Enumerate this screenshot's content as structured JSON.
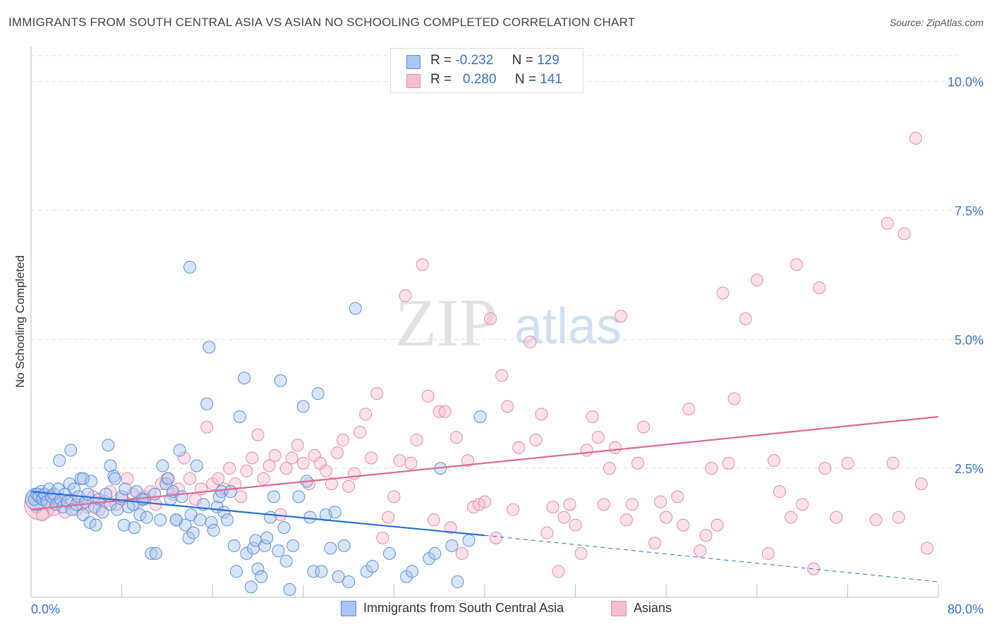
{
  "header": {
    "title": "IMMIGRANTS FROM SOUTH CENTRAL ASIA VS ASIAN NO SCHOOLING COMPLETED CORRELATION CHART",
    "source": "Source: ZipAtlas.com"
  },
  "legend_top": {
    "rows": [
      {
        "r_label": "R =",
        "r_value": "-0.232",
        "n_label": "N =",
        "n_value": "129"
      },
      {
        "r_label": "R =",
        "r_value": "0.280",
        "n_label": "N =",
        "n_value": "141"
      }
    ]
  },
  "watermark": {
    "zip": "ZIP",
    "atlas": "atlas"
  },
  "colors": {
    "blue_fill": "#a9c6f0",
    "blue_stroke": "#5a8fd8",
    "blue_line": "#2a6fd6",
    "pink_fill": "#f6bfd0",
    "pink_stroke": "#e889a8",
    "pink_line": "#e0688f",
    "axis_label": "#3a6fd6",
    "grid": "#dddddd"
  },
  "chart_data": {
    "type": "scatter",
    "title": "IMMIGRANTS FROM SOUTH CENTRAL ASIA VS ASIAN NO SCHOOLING COMPLETED CORRELATION CHART",
    "xlabel": "",
    "ylabel": "No Schooling Completed",
    "xlim": [
      0,
      80
    ],
    "ylim": [
      0,
      10.5
    ],
    "x_tick_labels": [
      "0.0%",
      "80.0%"
    ],
    "y_ticks": [
      2.5,
      5.0,
      7.5,
      10.0
    ],
    "y_tick_labels": [
      "2.5%",
      "5.0%",
      "7.5%",
      "10.0%"
    ],
    "grid": true,
    "legend_position": "top-center",
    "series": [
      {
        "name": "Immigrants from South Central Asia",
        "color": "#5a8fd8",
        "trend": {
          "x": [
            0,
            40
          ],
          "y": [
            2.05,
            1.2
          ],
          "dashed_extension": {
            "x": [
              40,
              80
            ],
            "y": [
              1.2,
              0.3
            ]
          }
        },
        "points": [
          [
            0.3,
            1.9
          ],
          [
            0.5,
            2.0
          ],
          [
            0.7,
            1.95
          ],
          [
            0.9,
            2.05
          ],
          [
            1.0,
            1.9
          ],
          [
            1.2,
            2.0
          ],
          [
            1.4,
            1.85
          ],
          [
            1.6,
            2.1
          ],
          [
            1.8,
            1.95
          ],
          [
            2.0,
            2.0
          ],
          [
            2.2,
            1.8
          ],
          [
            2.4,
            2.1
          ],
          [
            2.6,
            1.9
          ],
          [
            2.8,
            1.75
          ],
          [
            3.0,
            2.0
          ],
          [
            3.2,
            1.85
          ],
          [
            3.4,
            2.2
          ],
          [
            3.6,
            1.7
          ],
          [
            3.8,
            2.1
          ],
          [
            4.0,
            1.8
          ],
          [
            4.2,
            1.95
          ],
          [
            4.4,
            2.3
          ],
          [
            4.6,
            1.6
          ],
          [
            4.8,
            1.85
          ],
          [
            5.0,
            2.0
          ],
          [
            5.3,
            2.25
          ],
          [
            5.6,
            1.75
          ],
          [
            6.0,
            1.9
          ],
          [
            6.3,
            1.65
          ],
          [
            6.6,
            2.0
          ],
          [
            7.0,
            1.8
          ],
          [
            7.3,
            2.35
          ],
          [
            7.6,
            1.7
          ],
          [
            8.0,
            1.95
          ],
          [
            8.3,
            2.1
          ],
          [
            8.6,
            1.75
          ],
          [
            9.0,
            1.8
          ],
          [
            9.3,
            2.05
          ],
          [
            9.6,
            1.6
          ],
          [
            10.0,
            1.9
          ],
          [
            2.5,
            2.65
          ],
          [
            3.5,
            2.85
          ],
          [
            4.6,
            2.3
          ],
          [
            5.2,
            1.45
          ],
          [
            5.7,
            1.4
          ],
          [
            6.8,
            2.95
          ],
          [
            7.0,
            2.55
          ],
          [
            7.4,
            2.3
          ],
          [
            8.2,
            1.4
          ],
          [
            9.1,
            1.35
          ],
          [
            9.8,
            1.9
          ],
          [
            10.2,
            1.55
          ],
          [
            10.6,
            0.85
          ],
          [
            10.9,
            2.0
          ],
          [
            11.0,
            0.85
          ],
          [
            11.4,
            1.5
          ],
          [
            11.6,
            2.55
          ],
          [
            11.9,
            2.2
          ],
          [
            12.1,
            2.3
          ],
          [
            12.3,
            1.9
          ],
          [
            12.5,
            2.05
          ],
          [
            12.8,
            1.5
          ],
          [
            13.1,
            2.85
          ],
          [
            13.3,
            1.95
          ],
          [
            13.6,
            1.4
          ],
          [
            13.9,
            1.15
          ],
          [
            14.1,
            1.6
          ],
          [
            14.3,
            1.25
          ],
          [
            14.6,
            2.55
          ],
          [
            14.9,
            1.5
          ],
          [
            15.2,
            1.8
          ],
          [
            15.5,
            3.75
          ],
          [
            15.7,
            4.85
          ],
          [
            15.9,
            1.45
          ],
          [
            16.1,
            1.3
          ],
          [
            16.4,
            1.75
          ],
          [
            16.6,
            1.95
          ],
          [
            16.8,
            2.05
          ],
          [
            17.0,
            1.65
          ],
          [
            17.3,
            1.5
          ],
          [
            17.6,
            2.05
          ],
          [
            17.9,
            1.0
          ],
          [
            18.1,
            0.5
          ],
          [
            18.4,
            3.5
          ],
          [
            18.8,
            4.25
          ],
          [
            19.0,
            0.85
          ],
          [
            19.4,
            0.2
          ],
          [
            19.6,
            0.95
          ],
          [
            19.8,
            1.1
          ],
          [
            20.0,
            0.55
          ],
          [
            20.3,
            0.4
          ],
          [
            20.6,
            1.0
          ],
          [
            20.8,
            1.15
          ],
          [
            21.1,
            1.55
          ],
          [
            21.4,
            1.95
          ],
          [
            21.8,
            0.9
          ],
          [
            22.0,
            4.2
          ],
          [
            22.3,
            1.35
          ],
          [
            22.5,
            0.7
          ],
          [
            22.8,
            0.15
          ],
          [
            23.1,
            1.0
          ],
          [
            23.6,
            1.95
          ],
          [
            24.0,
            3.7
          ],
          [
            24.3,
            2.25
          ],
          [
            24.6,
            1.55
          ],
          [
            24.9,
            0.5
          ],
          [
            25.3,
            3.95
          ],
          [
            25.6,
            0.5
          ],
          [
            26.0,
            1.6
          ],
          [
            26.4,
            0.95
          ],
          [
            26.8,
            1.65
          ],
          [
            27.1,
            0.4
          ],
          [
            27.6,
            1.0
          ],
          [
            28.0,
            0.3
          ],
          [
            28.6,
            5.6
          ],
          [
            29.6,
            0.5
          ],
          [
            30.1,
            0.6
          ],
          [
            31.6,
            0.85
          ],
          [
            33.1,
            0.4
          ],
          [
            33.6,
            0.5
          ],
          [
            35.1,
            0.75
          ],
          [
            35.6,
            0.85
          ],
          [
            36.1,
            2.5
          ],
          [
            37.1,
            1.0
          ],
          [
            37.6,
            0.3
          ],
          [
            38.6,
            1.1
          ],
          [
            39.6,
            3.5
          ],
          [
            14.0,
            6.4
          ],
          [
            12.8,
            1.5
          ]
        ],
        "bubble": {
          "x": 0.5,
          "y": 1.9
        }
      },
      {
        "name": "Asians",
        "color": "#e889a8",
        "trend": {
          "x": [
            0,
            80
          ],
          "y": [
            1.7,
            3.5
          ]
        },
        "points": [
          [
            0.5,
            1.75
          ],
          [
            1.0,
            1.6
          ],
          [
            1.5,
            1.8
          ],
          [
            2.0,
            1.7
          ],
          [
            2.5,
            1.85
          ],
          [
            3.0,
            1.65
          ],
          [
            3.5,
            1.9
          ],
          [
            4.0,
            1.7
          ],
          [
            4.5,
            1.8
          ],
          [
            5.0,
            1.75
          ],
          [
            5.5,
            1.95
          ],
          [
            6.0,
            1.7
          ],
          [
            6.5,
            1.85
          ],
          [
            7.0,
            2.05
          ],
          [
            7.5,
            1.8
          ],
          [
            8.0,
            1.9
          ],
          [
            8.5,
            2.3
          ],
          [
            9.0,
            2.0
          ],
          [
            9.5,
            1.85
          ],
          [
            10.0,
            1.95
          ],
          [
            10.5,
            2.05
          ],
          [
            11.0,
            1.8
          ],
          [
            11.5,
            2.2
          ],
          [
            12.0,
            2.3
          ],
          [
            12.5,
            2.0
          ],
          [
            13.0,
            2.1
          ],
          [
            13.5,
            2.7
          ],
          [
            14.0,
            2.3
          ],
          [
            14.5,
            1.9
          ],
          [
            15.0,
            2.1
          ],
          [
            15.5,
            3.3
          ],
          [
            16.0,
            2.2
          ],
          [
            16.5,
            2.3
          ],
          [
            17.0,
            2.1
          ],
          [
            17.5,
            2.5
          ],
          [
            18.0,
            2.2
          ],
          [
            18.5,
            1.95
          ],
          [
            19.0,
            2.45
          ],
          [
            19.5,
            2.7
          ],
          [
            20.0,
            3.15
          ],
          [
            20.5,
            2.3
          ],
          [
            21.0,
            2.55
          ],
          [
            21.5,
            2.75
          ],
          [
            22.0,
            1.6
          ],
          [
            22.5,
            2.5
          ],
          [
            23.0,
            2.7
          ],
          [
            23.5,
            2.95
          ],
          [
            24.0,
            2.6
          ],
          [
            24.5,
            2.2
          ],
          [
            25.0,
            2.75
          ],
          [
            25.5,
            2.6
          ],
          [
            26.0,
            2.45
          ],
          [
            26.5,
            2.2
          ],
          [
            27.0,
            2.8
          ],
          [
            27.5,
            3.05
          ],
          [
            28.0,
            2.15
          ],
          [
            28.5,
            2.4
          ],
          [
            29.0,
            3.2
          ],
          [
            29.5,
            3.55
          ],
          [
            30.0,
            2.7
          ],
          [
            30.5,
            3.95
          ],
          [
            31.0,
            1.15
          ],
          [
            31.5,
            1.55
          ],
          [
            32.0,
            1.95
          ],
          [
            32.5,
            2.65
          ],
          [
            33.0,
            5.85
          ],
          [
            33.5,
            2.6
          ],
          [
            34.0,
            3.05
          ],
          [
            34.5,
            6.45
          ],
          [
            35.0,
            3.9
          ],
          [
            35.5,
            1.5
          ],
          [
            36.0,
            3.6
          ],
          [
            36.5,
            3.6
          ],
          [
            37.0,
            1.35
          ],
          [
            37.5,
            3.1
          ],
          [
            38.0,
            0.85
          ],
          [
            38.5,
            2.65
          ],
          [
            39.0,
            1.75
          ],
          [
            39.5,
            1.8
          ],
          [
            40.0,
            1.85
          ],
          [
            40.5,
            5.4
          ],
          [
            41.0,
            1.15
          ],
          [
            41.5,
            4.3
          ],
          [
            42.0,
            3.7
          ],
          [
            42.5,
            1.7
          ],
          [
            43.0,
            2.9
          ],
          [
            44.0,
            4.95
          ],
          [
            44.5,
            3.05
          ],
          [
            45.0,
            3.55
          ],
          [
            45.5,
            1.25
          ],
          [
            46.0,
            1.75
          ],
          [
            46.5,
            0.5
          ],
          [
            47.0,
            1.55
          ],
          [
            47.5,
            1.8
          ],
          [
            48.0,
            1.4
          ],
          [
            48.5,
            0.85
          ],
          [
            49.0,
            2.85
          ],
          [
            49.5,
            3.5
          ],
          [
            50.0,
            3.1
          ],
          [
            50.5,
            1.8
          ],
          [
            51.0,
            2.5
          ],
          [
            51.5,
            2.9
          ],
          [
            52.0,
            5.45
          ],
          [
            52.5,
            1.5
          ],
          [
            53.0,
            1.8
          ],
          [
            53.5,
            2.6
          ],
          [
            54.0,
            3.3
          ],
          [
            55.0,
            1.05
          ],
          [
            55.5,
            1.85
          ],
          [
            56.0,
            1.55
          ],
          [
            57.0,
            1.95
          ],
          [
            57.5,
            1.4
          ],
          [
            58.0,
            3.65
          ],
          [
            59.0,
            0.9
          ],
          [
            59.5,
            1.2
          ],
          [
            60.0,
            2.5
          ],
          [
            60.5,
            1.4
          ],
          [
            61.0,
            5.9
          ],
          [
            61.5,
            2.6
          ],
          [
            62.0,
            3.85
          ],
          [
            63.0,
            5.4
          ],
          [
            64.0,
            6.15
          ],
          [
            65.0,
            0.85
          ],
          [
            65.5,
            2.65
          ],
          [
            66.0,
            2.05
          ],
          [
            67.0,
            1.55
          ],
          [
            67.5,
            6.45
          ],
          [
            68.0,
            1.8
          ],
          [
            69.0,
            0.55
          ],
          [
            69.5,
            6.0
          ],
          [
            70.0,
            2.5
          ],
          [
            71.0,
            1.55
          ],
          [
            72.0,
            2.6
          ],
          [
            74.5,
            1.5
          ],
          [
            75.5,
            7.25
          ],
          [
            76.0,
            2.6
          ],
          [
            76.5,
            1.55
          ],
          [
            77.0,
            7.05
          ],
          [
            78.0,
            8.9
          ],
          [
            78.5,
            2.2
          ],
          [
            79.0,
            0.95
          ]
        ],
        "bubble": {
          "x": 0.8,
          "y": 1.8
        }
      }
    ]
  },
  "bottom_legend": {
    "items": [
      {
        "label": "Immigrants from South Central Asia"
      },
      {
        "label": "Asians"
      }
    ]
  }
}
